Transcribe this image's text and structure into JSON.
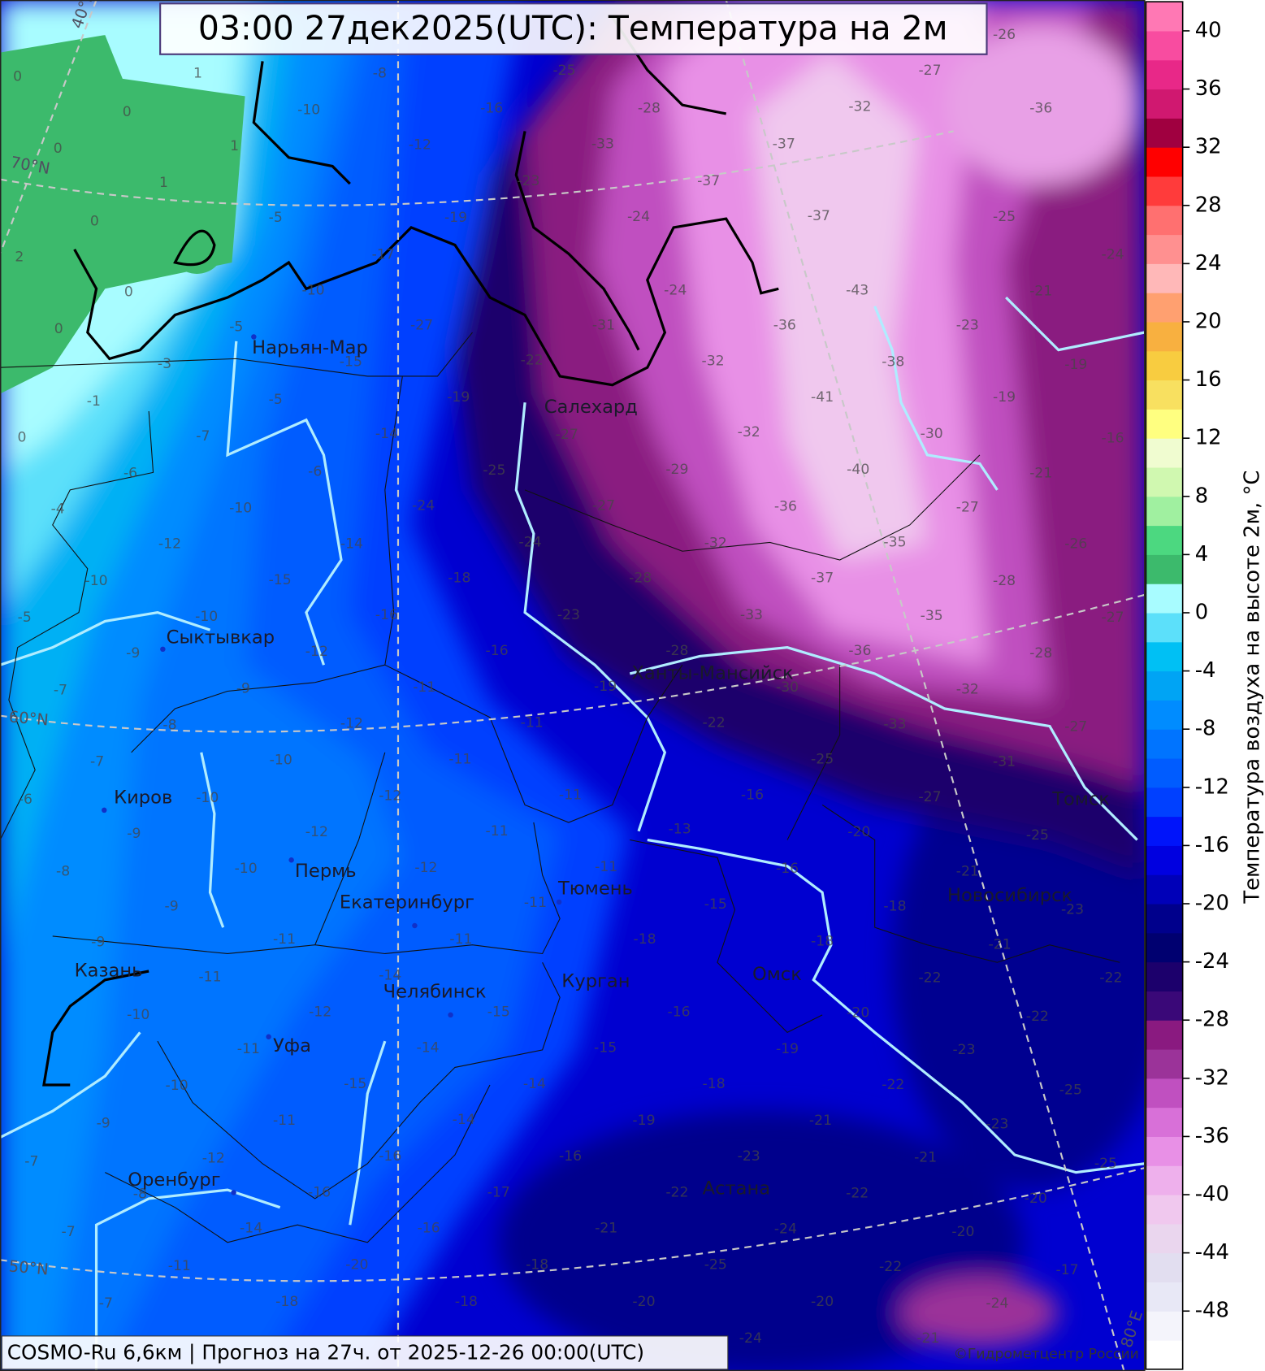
{
  "title": "03:00 27дек2025(UTC): Температура на 2м",
  "footer": "COSMO-Ru 6,6км | Прогноз на  27ч. от 2025-12-26 00:00(UTC)",
  "copyright": "©Гидрометцентр России",
  "colorbar": {
    "label": "Температура воздуха на высоте 2м, °C",
    "range": [
      -52,
      42
    ],
    "ticks": [
      40,
      36,
      32,
      28,
      24,
      20,
      16,
      12,
      8,
      4,
      0,
      -4,
      -8,
      -12,
      -16,
      -20,
      -24,
      -28,
      -32,
      -36,
      -40,
      -44,
      -48
    ],
    "colors": [
      "#ffffff",
      "#f4f4fb",
      "#e8e8f6",
      "#e2def0",
      "#ead6ee",
      "#f0c8ee",
      "#eeb0ec",
      "#e890e6",
      "#d870d8",
      "#c050c0",
      "#9b3399",
      "#8a1a80",
      "#3a0878",
      "#1c006c",
      "#000070",
      "#00008c",
      "#0000b8",
      "#0000e0",
      "#0014fa",
      "#0040ff",
      "#005cff",
      "#0074ff",
      "#008cff",
      "#00a4f4",
      "#00c0f4",
      "#5ce0fa",
      "#a8fcff",
      "#3cba6c",
      "#4cd880",
      "#a0f0a0",
      "#d0f8b0",
      "#f0fcd0",
      "#ffff80",
      "#f8e060",
      "#f8cc40",
      "#f8b040",
      "#ffa070",
      "#ffb8b8",
      "#ff9090",
      "#ff7070",
      "#ff3b3b",
      "#ff0000",
      "#a00040",
      "#d01870",
      "#e82888",
      "#f84ca0",
      "#ff78b4"
    ]
  },
  "map": {
    "grid_labels": [
      "70°N",
      "60°N",
      "50°N",
      "40°E",
      "80°E"
    ],
    "cities": [
      "Нарьян-Мар",
      "Салехард",
      "Сыктывкар",
      "Ханты-Мансийск",
      "Киров",
      "Пермь",
      "Екатеринбург",
      "Тюмень",
      "Томск",
      "Новосибирск",
      "Казань",
      "Челябинск",
      "Курган",
      "Омск",
      "Уфа",
      "Оренбург",
      "Астана"
    ],
    "temperature_labels": [
      0,
      1,
      0,
      1,
      0,
      1,
      0,
      2,
      0,
      0,
      -5,
      -3,
      -1,
      0,
      -5,
      -8,
      -10,
      -16,
      -12,
      -25,
      -33,
      -23,
      -19,
      -17,
      -10,
      -27,
      -15,
      -5,
      -7,
      -6,
      -4,
      -6,
      -10,
      -12,
      -10,
      -5,
      -10,
      -9,
      -7,
      -14,
      -15,
      -14,
      -24,
      -25,
      -22,
      -19,
      -31,
      -24,
      -24,
      -28,
      -37,
      -37,
      -37,
      -32,
      -27,
      -26,
      -36,
      -25,
      -24,
      -21,
      -23,
      -38,
      -43,
      -36,
      -32,
      -27,
      -24,
      -27,
      -29,
      -32,
      -41,
      -30,
      -19,
      -19,
      -16,
      -21,
      -27,
      -35,
      -40,
      -36,
      -32,
      -28,
      -23,
      -18,
      -16,
      -12,
      -9,
      -8,
      -7,
      -6,
      -16,
      -11,
      -12,
      -10,
      -10,
      -9,
      -8,
      -11,
      -11,
      -12,
      -12,
      -10,
      -9,
      -9,
      -19,
      -28,
      -33,
      -37,
      -35,
      -28,
      -26,
      -27,
      -28,
      -32,
      -33,
      -36,
      -30,
      -22,
      -11,
      -11,
      -12,
      -11,
      -11,
      -10,
      -16,
      -25,
      -27,
      -31,
      -27,
      -25,
      -21,
      -18,
      -20,
      -16,
      -15,
      -13,
      -11,
      -11,
      -11,
      -14,
      -12,
      -11,
      -10,
      -9,
      -7,
      -18,
      -15,
      -14,
      -15,
      -11,
      -12,
      -8,
      -7,
      -16,
      -15,
      -14,
      -14,
      -16,
      -16,
      -14,
      -11,
      -7,
      -18,
      -19,
      -18,
      -19,
      -16,
      -17,
      -16,
      -20,
      -18,
      -22,
      -20,
      -23,
      -22,
      -25,
      -23,
      -21,
      -22,
      -21,
      -23,
      -22,
      -21,
      -18,
      -18,
      -22,
      -20,
      -20,
      -22,
      -22,
      -24,
      -25,
      -20,
      -20,
      -24,
      -21,
      -24,
      -17,
      -25,
      -23,
      -21
    ]
  }
}
